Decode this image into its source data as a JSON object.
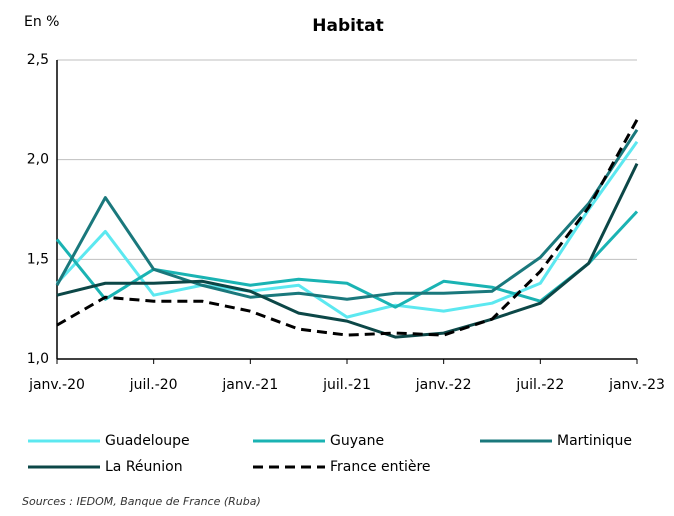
{
  "chart_data": {
    "type": "line",
    "title": "Habitat",
    "y_label": "En %",
    "source": "Sources : IEDOM, Banque de France (Ruba)",
    "categories": [
      "janv.-20",
      null,
      "juil.-20",
      null,
      "janv.-21",
      null,
      "juil.-21",
      null,
      "janv.-22",
      null,
      "juil.-22",
      null,
      "janv.-23"
    ],
    "series": [
      {
        "name": "Guadeloupe",
        "color": "#5ce8f0",
        "values": [
          1.38,
          1.64,
          1.32,
          1.37,
          1.34,
          1.37,
          1.21,
          1.27,
          1.24,
          1.28,
          1.38,
          1.75,
          2.09
        ]
      },
      {
        "name": "Guyane",
        "color": "#1ab3b3",
        "values": [
          1.6,
          1.3,
          1.45,
          1.41,
          1.37,
          1.4,
          1.38,
          1.26,
          1.39,
          1.36,
          1.29,
          1.48,
          1.74
        ]
      },
      {
        "name": "Martinique",
        "color": "#1a787c",
        "values": [
          1.37,
          1.81,
          1.45,
          1.37,
          1.31,
          1.33,
          1.3,
          1.33,
          1.33,
          1.34,
          1.51,
          1.78,
          2.15
        ]
      },
      {
        "name": "La Réunion",
        "color": "#0c4747",
        "values": [
          1.32,
          1.38,
          1.38,
          1.39,
          1.34,
          1.23,
          1.19,
          1.11,
          1.13,
          1.2,
          1.28,
          1.48,
          1.98
        ]
      },
      {
        "name": "France entière",
        "color": "#000000",
        "dashed": true,
        "values": [
          1.17,
          1.31,
          1.29,
          1.29,
          1.24,
          1.15,
          1.12,
          1.13,
          1.12,
          1.2,
          1.44,
          1.76,
          2.2
        ]
      }
    ],
    "ylim": [
      1.0,
      2.5
    ],
    "yticks": [
      {
        "value": 1.0,
        "label": "1,0"
      },
      {
        "value": 1.5,
        "label": "1,5"
      },
      {
        "value": 2.0,
        "label": "2,0"
      },
      {
        "value": 2.5,
        "label": "2,5"
      }
    ],
    "grid": true
  }
}
